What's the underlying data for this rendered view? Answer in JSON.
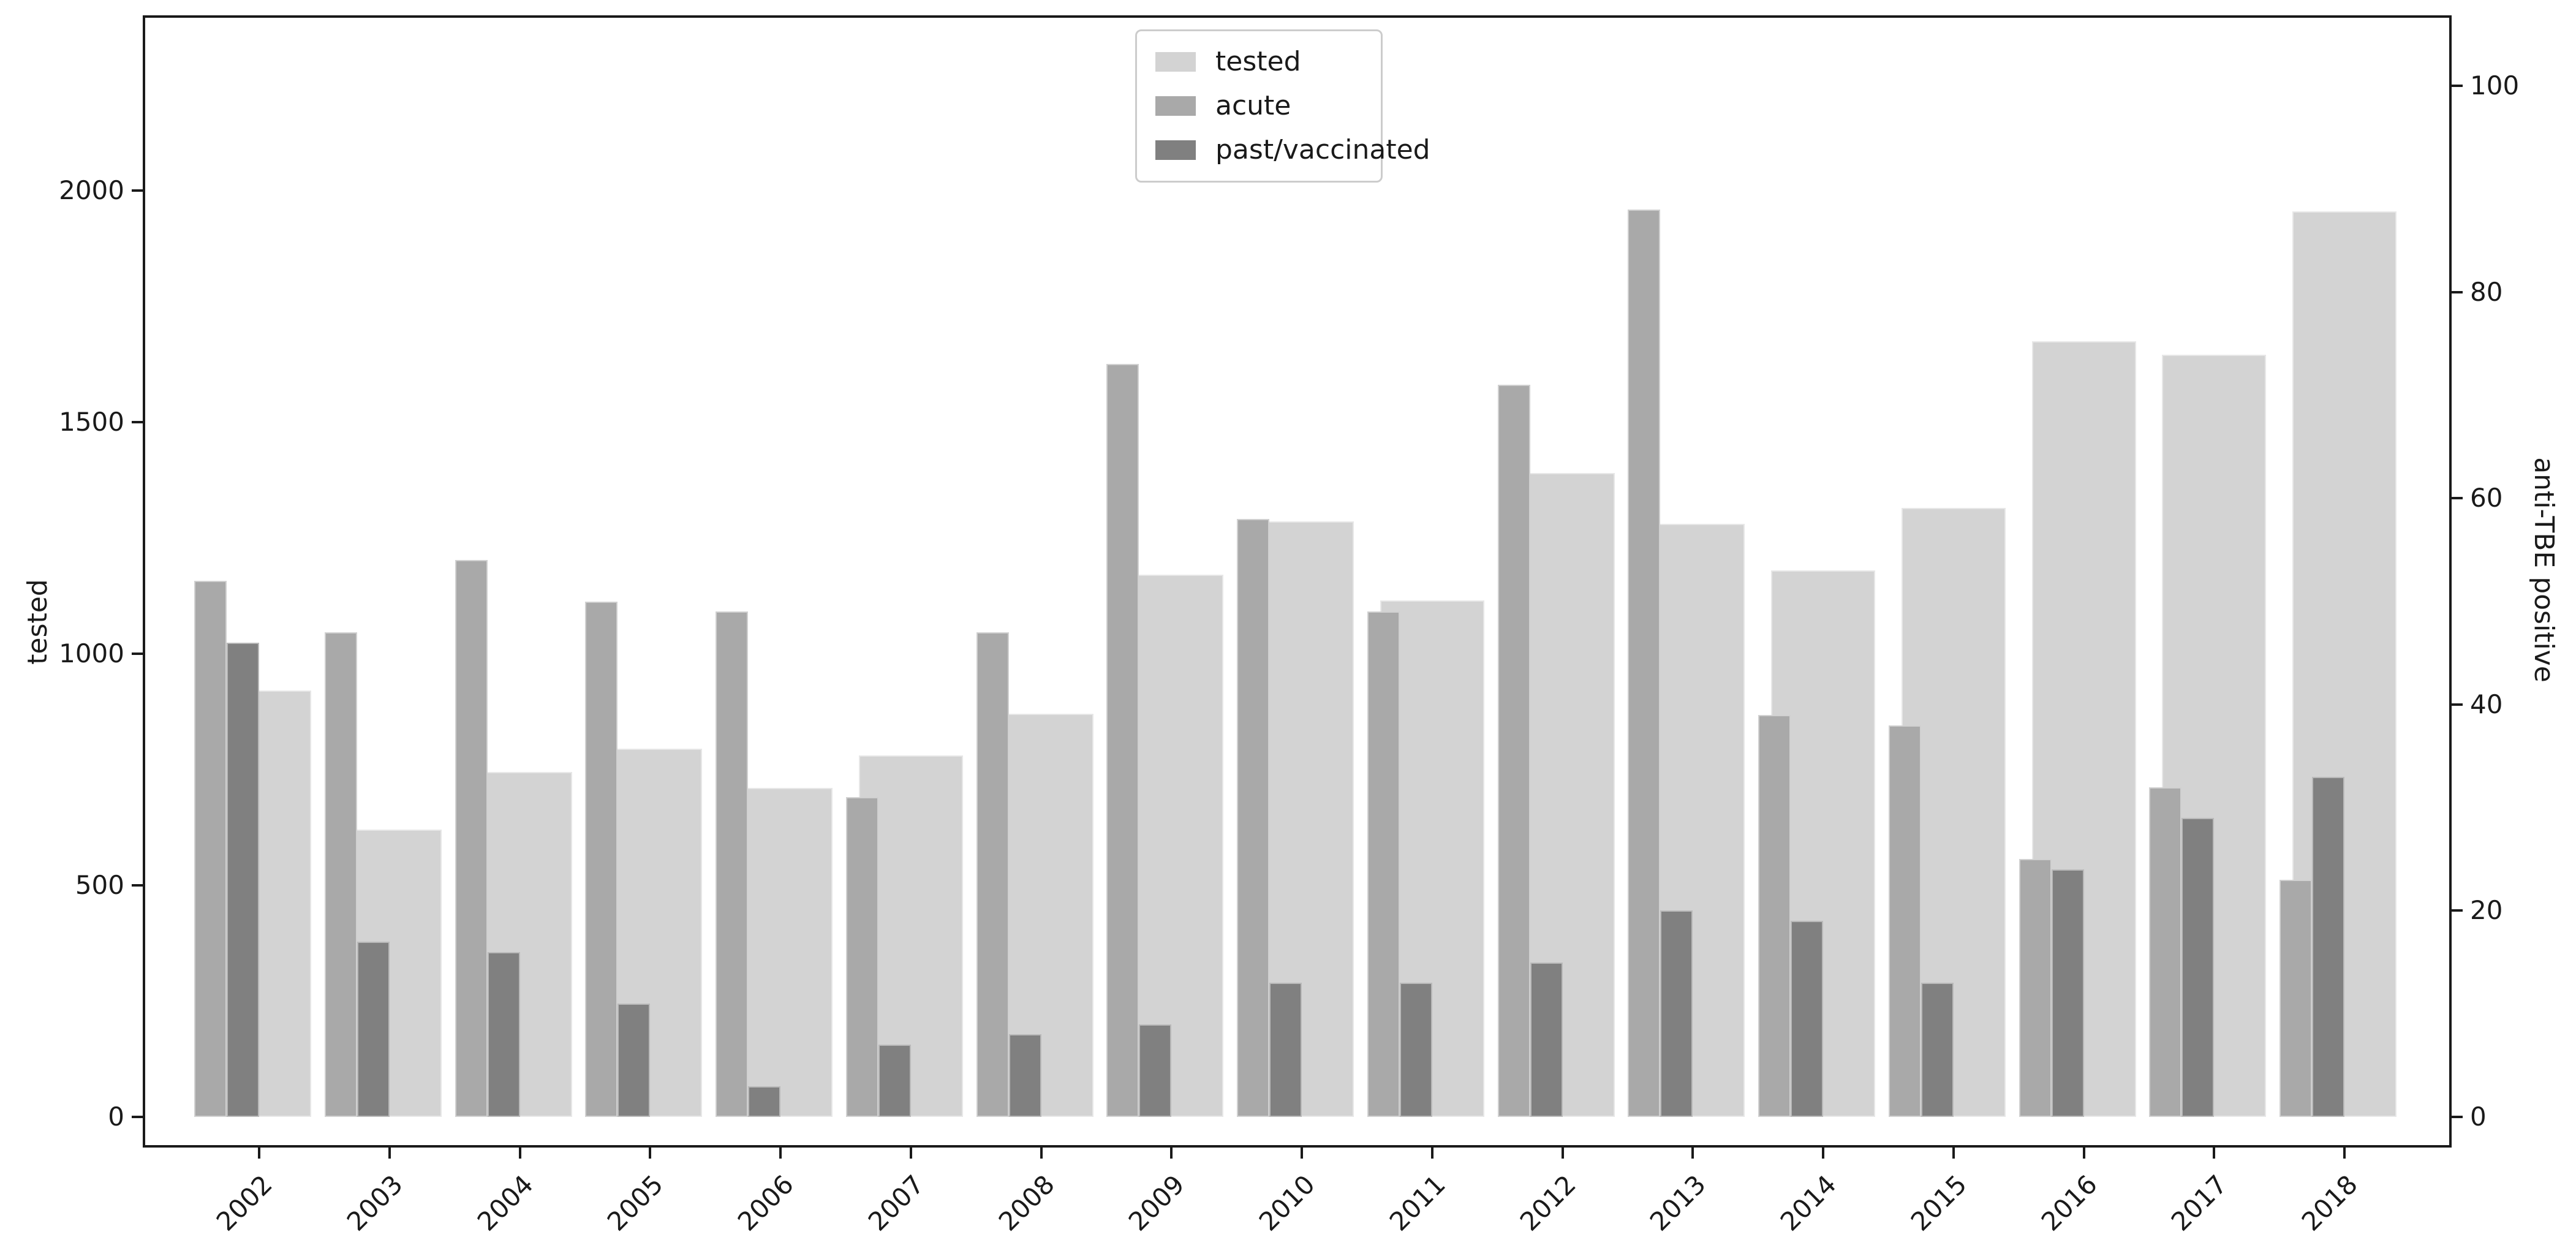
{
  "figure": {
    "background": "#ffffff"
  },
  "legend": {
    "items": [
      {
        "label": "tested",
        "color": "#d3d3d3"
      },
      {
        "label": "acute",
        "color": "#a9a9a9"
      },
      {
        "label": "past/vaccinated",
        "color": "#808080"
      }
    ]
  },
  "axes": {
    "left": {
      "label": "tested",
      "ticks": [
        0,
        500,
        1000,
        1500,
        2000
      ]
    },
    "right": {
      "label": "anti-TBE positive",
      "ticks": [
        0,
        20,
        40,
        60,
        80,
        100
      ]
    },
    "x": {
      "ticks": [
        "2002",
        "2003",
        "2004",
        "2005",
        "2006",
        "2007",
        "2008",
        "2009",
        "2010",
        "2011",
        "2012",
        "2013",
        "2014",
        "2015",
        "2016",
        "2017",
        "2018"
      ]
    }
  },
  "chart_data": {
    "type": "bar",
    "title": "",
    "categories": [
      "2002",
      "2003",
      "2004",
      "2005",
      "2006",
      "2007",
      "2008",
      "2009",
      "2010",
      "2011",
      "2012",
      "2013",
      "2014",
      "2015",
      "2016",
      "2017",
      "2018"
    ],
    "series": [
      {
        "name": "tested",
        "axis": "left",
        "color": "#d3d3d3",
        "values": [
          920,
          620,
          745,
          795,
          710,
          780,
          870,
          1170,
          1285,
          1115,
          1390,
          1280,
          1180,
          1315,
          1675,
          1645,
          1955
        ]
      },
      {
        "name": "acute",
        "axis": "right",
        "color": "#a9a9a9",
        "values": [
          52,
          47,
          54,
          50,
          49,
          31,
          47,
          73,
          58,
          49,
          71,
          88,
          39,
          38,
          25,
          32,
          23
        ]
      },
      {
        "name": "past/vaccinated",
        "axis": "right",
        "color": "#808080",
        "values": [
          46,
          17,
          16,
          11,
          3,
          7,
          8,
          9,
          13,
          13,
          15,
          20,
          19,
          13,
          24,
          29,
          33
        ]
      }
    ],
    "xlabel": "",
    "ylabel": "tested",
    "ylabel_right": "anti-TBE positive",
    "ylim_left": [
      -66,
      2378
    ],
    "ylim_right": [
      -3,
      106.8
    ],
    "xtick_rotation": 45,
    "legend_position": "upper center",
    "grid": false
  }
}
